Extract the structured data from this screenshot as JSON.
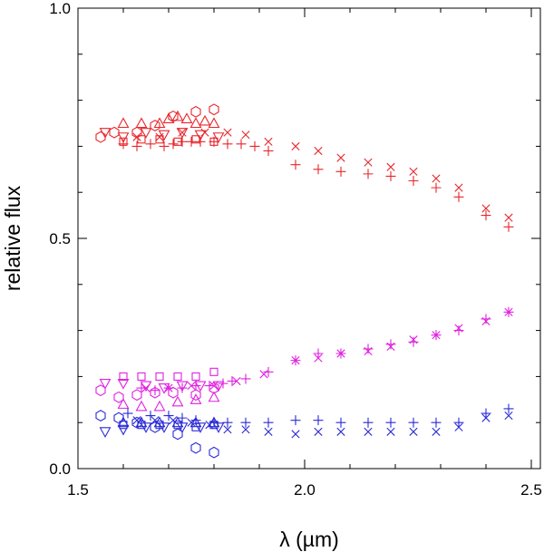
{
  "chart_data": {
    "type": "scatter",
    "title": "",
    "xlabel": "λ (µm)",
    "ylabel": "relative flux",
    "xlim": [
      1.5,
      2.52
    ],
    "ylim": [
      0.0,
      1.0
    ],
    "x_ticks": [
      "1.5",
      "2.0",
      "2.5"
    ],
    "x_tick_values": [
      1.5,
      2.0,
      2.5
    ],
    "y_ticks": [
      "0.0",
      "0.5",
      "1.0"
    ],
    "y_tick_values": [
      0.0,
      0.5,
      1.0
    ],
    "grid": false,
    "series": [
      {
        "name": "red-plus",
        "color": "#e8262b",
        "marker": "plus",
        "points": [
          [
            1.6,
            0.705
          ],
          [
            1.63,
            0.7
          ],
          [
            1.66,
            0.705
          ],
          [
            1.69,
            0.7
          ],
          [
            1.71,
            0.705
          ],
          [
            1.73,
            0.71
          ],
          [
            1.75,
            0.71
          ],
          [
            1.77,
            0.71
          ],
          [
            1.8,
            0.71
          ],
          [
            1.83,
            0.705
          ],
          [
            1.86,
            0.705
          ],
          [
            1.89,
            0.7
          ],
          [
            1.92,
            0.69
          ],
          [
            1.98,
            0.66
          ],
          [
            2.03,
            0.65
          ],
          [
            2.08,
            0.645
          ],
          [
            2.14,
            0.64
          ],
          [
            2.19,
            0.635
          ],
          [
            2.24,
            0.625
          ],
          [
            2.29,
            0.61
          ],
          [
            2.34,
            0.59
          ],
          [
            2.4,
            0.55
          ],
          [
            2.45,
            0.525
          ]
        ]
      },
      {
        "name": "red-cross",
        "color": "#e8262b",
        "marker": "cross",
        "points": [
          [
            1.63,
            0.72
          ],
          [
            1.68,
            0.72
          ],
          [
            1.73,
            0.73
          ],
          [
            1.78,
            0.73
          ],
          [
            1.83,
            0.73
          ],
          [
            1.87,
            0.725
          ],
          [
            1.92,
            0.71
          ],
          [
            1.98,
            0.7
          ],
          [
            2.03,
            0.69
          ],
          [
            2.08,
            0.675
          ],
          [
            2.14,
            0.665
          ],
          [
            2.19,
            0.655
          ],
          [
            2.24,
            0.645
          ],
          [
            2.29,
            0.63
          ],
          [
            2.34,
            0.61
          ],
          [
            2.4,
            0.565
          ],
          [
            2.45,
            0.545
          ]
        ]
      },
      {
        "name": "red-triangle",
        "color": "#e8262b",
        "marker": "triangle",
        "points": [
          [
            1.6,
            0.75
          ],
          [
            1.64,
            0.75
          ],
          [
            1.68,
            0.75
          ],
          [
            1.7,
            0.76
          ],
          [
            1.72,
            0.765
          ],
          [
            1.74,
            0.76
          ],
          [
            1.76,
            0.75
          ],
          [
            1.78,
            0.755
          ],
          [
            1.8,
            0.75
          ]
        ]
      },
      {
        "name": "red-square",
        "color": "#e8262b",
        "marker": "square",
        "points": [
          [
            1.6,
            0.71
          ],
          [
            1.64,
            0.715
          ],
          [
            1.68,
            0.715
          ],
          [
            1.72,
            0.71
          ],
          [
            1.76,
            0.715
          ],
          [
            1.8,
            0.71
          ]
        ]
      },
      {
        "name": "red-circle",
        "color": "#e8262b",
        "marker": "circle",
        "points": [
          [
            1.55,
            0.72
          ],
          [
            1.58,
            0.73
          ],
          [
            1.63,
            0.73
          ],
          [
            1.67,
            0.745
          ],
          [
            1.71,
            0.765
          ],
          [
            1.76,
            0.775
          ],
          [
            1.8,
            0.78
          ]
        ]
      },
      {
        "name": "red-down-triangle",
        "color": "#e8262b",
        "marker": "down-triangle",
        "points": [
          [
            1.56,
            0.73
          ],
          [
            1.6,
            0.72
          ],
          [
            1.65,
            0.73
          ],
          [
            1.69,
            0.725
          ],
          [
            1.73,
            0.73
          ],
          [
            1.77,
            0.725
          ],
          [
            1.81,
            0.72
          ]
        ]
      },
      {
        "name": "magenta-plus",
        "color": "#e020e0",
        "marker": "plus",
        "points": [
          [
            1.64,
            0.175
          ],
          [
            1.67,
            0.17
          ],
          [
            1.7,
            0.175
          ],
          [
            1.73,
            0.175
          ],
          [
            1.76,
            0.18
          ],
          [
            1.79,
            0.18
          ],
          [
            1.82,
            0.185
          ],
          [
            1.84,
            0.19
          ],
          [
            1.87,
            0.195
          ],
          [
            1.92,
            0.21
          ],
          [
            1.98,
            0.235
          ],
          [
            2.03,
            0.25
          ],
          [
            2.08,
            0.25
          ],
          [
            2.14,
            0.26
          ],
          [
            2.19,
            0.27
          ],
          [
            2.24,
            0.275
          ],
          [
            2.29,
            0.29
          ],
          [
            2.34,
            0.3
          ],
          [
            2.4,
            0.325
          ],
          [
            2.45,
            0.34
          ]
        ]
      },
      {
        "name": "magenta-cross",
        "color": "#e020e0",
        "marker": "cross",
        "points": [
          [
            1.65,
            0.175
          ],
          [
            1.7,
            0.175
          ],
          [
            1.75,
            0.18
          ],
          [
            1.8,
            0.18
          ],
          [
            1.85,
            0.19
          ],
          [
            1.91,
            0.205
          ],
          [
            1.98,
            0.235
          ],
          [
            2.03,
            0.24
          ],
          [
            2.08,
            0.25
          ],
          [
            2.14,
            0.255
          ],
          [
            2.19,
            0.265
          ],
          [
            2.24,
            0.28
          ],
          [
            2.29,
            0.29
          ],
          [
            2.34,
            0.305
          ],
          [
            2.4,
            0.32
          ],
          [
            2.45,
            0.34
          ]
        ]
      },
      {
        "name": "magenta-triangle",
        "color": "#e020e0",
        "marker": "triangle",
        "points": [
          [
            1.6,
            0.14
          ],
          [
            1.64,
            0.135
          ],
          [
            1.68,
            0.135
          ],
          [
            1.72,
            0.145
          ],
          [
            1.76,
            0.15
          ],
          [
            1.8,
            0.155
          ]
        ]
      },
      {
        "name": "magenta-square",
        "color": "#e020e0",
        "marker": "square",
        "points": [
          [
            1.6,
            0.2
          ],
          [
            1.64,
            0.2
          ],
          [
            1.68,
            0.2
          ],
          [
            1.72,
            0.2
          ],
          [
            1.76,
            0.2
          ],
          [
            1.8,
            0.21
          ]
        ]
      },
      {
        "name": "magenta-circle",
        "color": "#e020e0",
        "marker": "circle",
        "points": [
          [
            1.55,
            0.17
          ],
          [
            1.59,
            0.155
          ],
          [
            1.63,
            0.16
          ],
          [
            1.67,
            0.165
          ],
          [
            1.71,
            0.165
          ],
          [
            1.76,
            0.16
          ],
          [
            1.8,
            0.175
          ]
        ]
      },
      {
        "name": "magenta-down-triangle",
        "color": "#e020e0",
        "marker": "down-triangle",
        "points": [
          [
            1.56,
            0.185
          ],
          [
            1.6,
            0.185
          ],
          [
            1.65,
            0.18
          ],
          [
            1.69,
            0.175
          ],
          [
            1.73,
            0.18
          ],
          [
            1.77,
            0.18
          ],
          [
            1.81,
            0.18
          ]
        ]
      },
      {
        "name": "blue-plus",
        "color": "#2a2ad8",
        "marker": "plus",
        "points": [
          [
            1.61,
            0.12
          ],
          [
            1.66,
            0.115
          ],
          [
            1.7,
            0.115
          ],
          [
            1.73,
            0.11
          ],
          [
            1.76,
            0.105
          ],
          [
            1.8,
            0.1
          ],
          [
            1.83,
            0.1
          ],
          [
            1.87,
            0.1
          ],
          [
            1.92,
            0.1
          ],
          [
            1.98,
            0.105
          ],
          [
            2.03,
            0.105
          ],
          [
            2.08,
            0.1
          ],
          [
            2.14,
            0.1
          ],
          [
            2.19,
            0.1
          ],
          [
            2.24,
            0.1
          ],
          [
            2.29,
            0.1
          ],
          [
            2.34,
            0.1
          ],
          [
            2.4,
            0.12
          ],
          [
            2.45,
            0.13
          ]
        ]
      },
      {
        "name": "blue-cross",
        "color": "#2a2ad8",
        "marker": "cross",
        "points": [
          [
            1.63,
            0.105
          ],
          [
            1.67,
            0.105
          ],
          [
            1.71,
            0.105
          ],
          [
            1.75,
            0.1
          ],
          [
            1.79,
            0.095
          ],
          [
            1.83,
            0.085
          ],
          [
            1.87,
            0.085
          ],
          [
            1.92,
            0.08
          ],
          [
            1.98,
            0.075
          ],
          [
            2.03,
            0.08
          ],
          [
            2.08,
            0.08
          ],
          [
            2.14,
            0.08
          ],
          [
            2.19,
            0.08
          ],
          [
            2.24,
            0.08
          ],
          [
            2.29,
            0.08
          ],
          [
            2.34,
            0.09
          ],
          [
            2.4,
            0.11
          ],
          [
            2.45,
            0.115
          ]
        ]
      },
      {
        "name": "blue-triangle",
        "color": "#2a2ad8",
        "marker": "triangle",
        "points": [
          [
            1.6,
            0.1
          ],
          [
            1.64,
            0.1
          ],
          [
            1.68,
            0.1
          ],
          [
            1.72,
            0.1
          ],
          [
            1.76,
            0.1
          ],
          [
            1.8,
            0.1
          ]
        ]
      },
      {
        "name": "blue-square",
        "color": "#2a2ad8",
        "marker": "square",
        "points": [
          [
            1.6,
            0.095
          ],
          [
            1.64,
            0.095
          ],
          [
            1.68,
            0.095
          ],
          [
            1.72,
            0.095
          ],
          [
            1.76,
            0.09
          ],
          [
            1.8,
            0.095
          ]
        ]
      },
      {
        "name": "blue-circle",
        "color": "#2a2ad8",
        "marker": "circle",
        "points": [
          [
            1.55,
            0.115
          ],
          [
            1.59,
            0.11
          ],
          [
            1.63,
            0.1
          ],
          [
            1.67,
            0.09
          ],
          [
            1.72,
            0.075
          ],
          [
            1.76,
            0.045
          ],
          [
            1.8,
            0.035
          ]
        ]
      },
      {
        "name": "blue-down-triangle",
        "color": "#2a2ad8",
        "marker": "down-triangle",
        "points": [
          [
            1.56,
            0.08
          ],
          [
            1.6,
            0.085
          ],
          [
            1.65,
            0.09
          ],
          [
            1.69,
            0.09
          ],
          [
            1.73,
            0.09
          ],
          [
            1.77,
            0.09
          ],
          [
            1.81,
            0.09
          ]
        ]
      }
    ]
  }
}
